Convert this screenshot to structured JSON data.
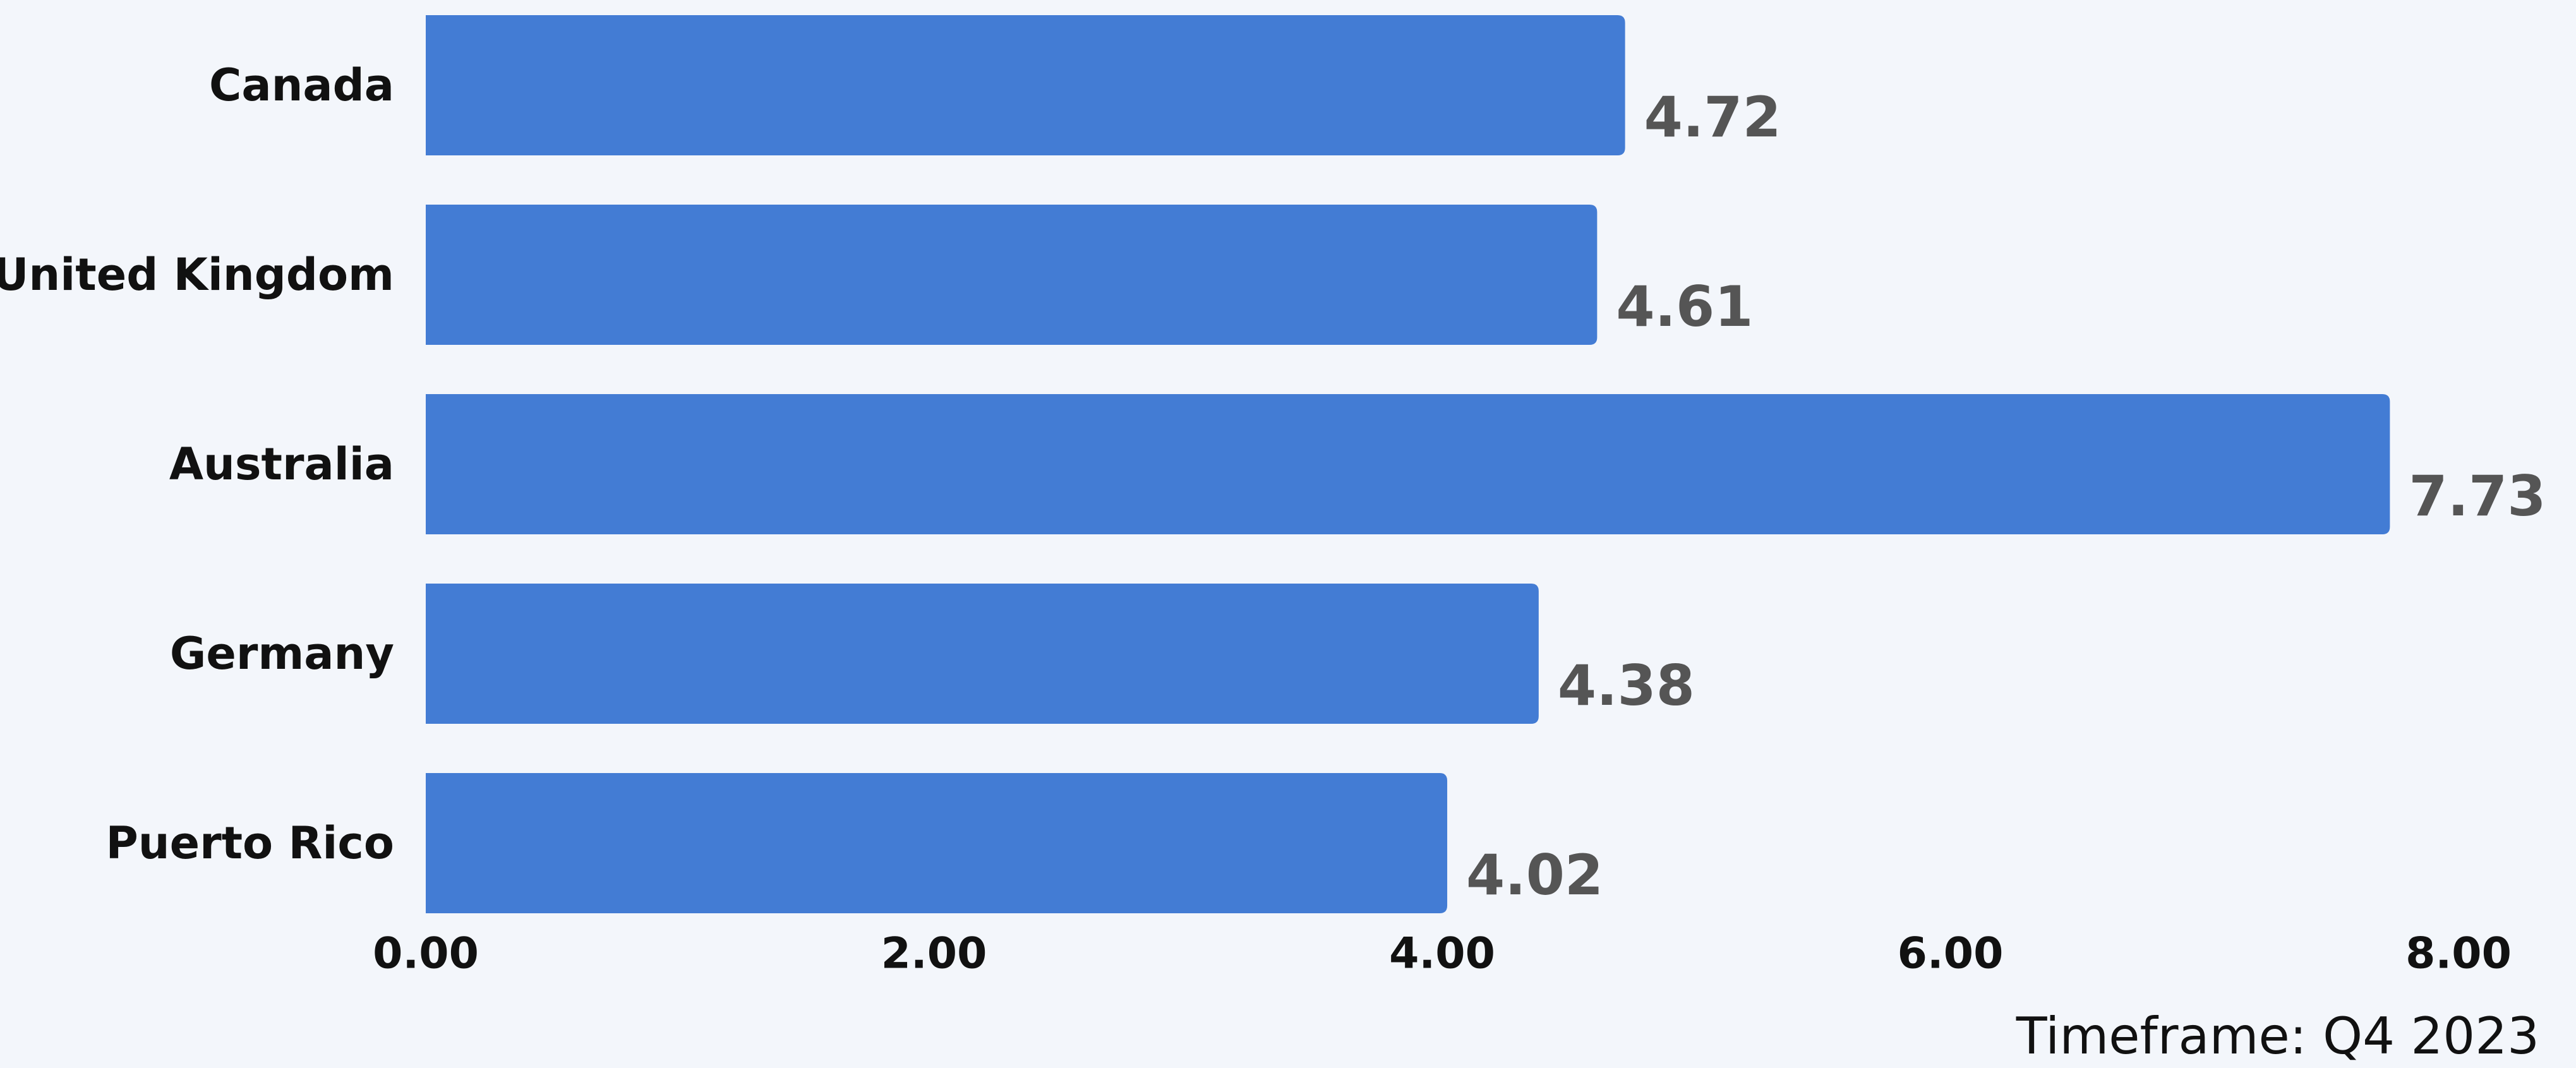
{
  "chart_data": {
    "type": "bar",
    "orientation": "horizontal",
    "categories": [
      "Canada",
      "United Kingdom",
      "Australia",
      "Germany",
      "Puerto Rico"
    ],
    "values": [
      4.72,
      4.61,
      7.73,
      4.38,
      4.02
    ],
    "value_labels": [
      "4.72",
      "4.61",
      "7.73",
      "4.38",
      "4.02"
    ],
    "xlim": [
      0,
      8
    ],
    "xticks": [
      0,
      2,
      4,
      6,
      8
    ],
    "xtick_labels": [
      "0.00",
      "2.00",
      "4.00",
      "6.00",
      "8.00"
    ],
    "grid": false,
    "legend": "none",
    "footnote": "Timeframe: Q4 2023"
  },
  "colors": {
    "bar": "#437cd4",
    "background": "#f3f6fb",
    "value_text": "#555555",
    "label_text": "#111111"
  }
}
